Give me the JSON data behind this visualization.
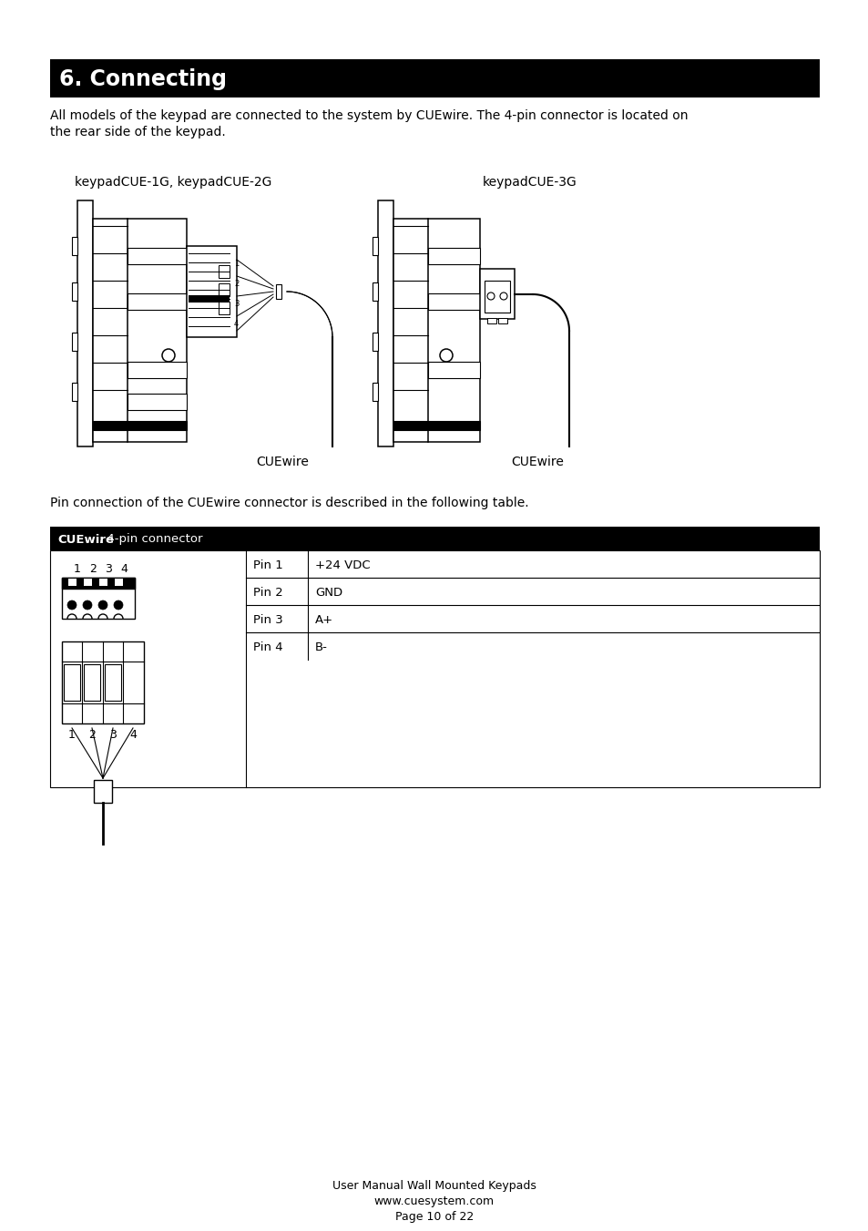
{
  "title": "6. Connecting",
  "title_bg": "#000000",
  "title_color": "#ffffff",
  "body_text_1": "All models of the keypad are connected to the system by CUEwire. The 4-pin connector is located on",
  "body_text_2": "the rear side of the keypad.",
  "label_left": "keypadCUE-1G, keypadCUE-2G",
  "label_right": "keypadCUE-3G",
  "cuewire_left": "CUEwire",
  "cuewire_right": "CUEwire",
  "pin_section_title": "Pin connection of the CUEwire connector is described in the following table.",
  "table_header_bold": "CUEwire",
  "table_header_rest": ", 4-pin connector",
  "pins": [
    {
      "pin": "Pin 1",
      "desc": "+24 VDC"
    },
    {
      "pin": "Pin 2",
      "desc": "GND"
    },
    {
      "pin": "Pin 3",
      "desc": "A+"
    },
    {
      "pin": "Pin 4",
      "desc": "B-"
    }
  ],
  "footer_lines": [
    "User Manual Wall Mounted Keypads",
    "www.cuesystem.com",
    "Page 10 of 22"
  ],
  "bg_color": "#ffffff",
  "text_color": "#000000",
  "table_header_bg": "#000000",
  "table_header_text": "#ffffff",
  "table_border_color": "#000000"
}
